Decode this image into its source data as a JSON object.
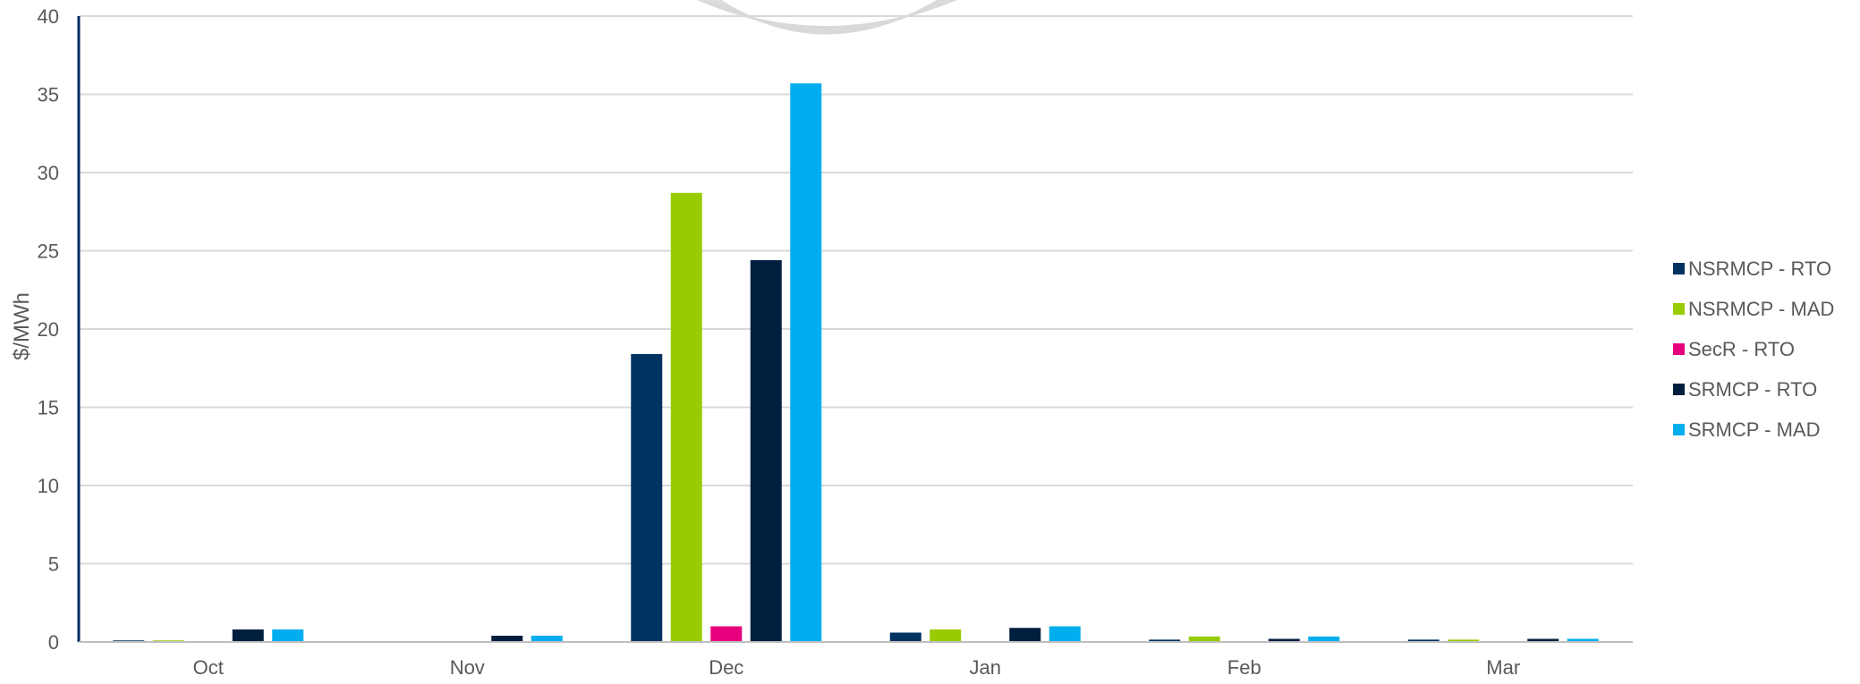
{
  "chart_data": {
    "type": "bar",
    "title": "",
    "xlabel": "",
    "ylabel": "$/MWh",
    "ylim": [
      0,
      40
    ],
    "yticks": [
      0,
      5,
      10,
      15,
      20,
      25,
      30,
      35,
      40
    ],
    "grid": true,
    "legend_position": "right",
    "categories": [
      "Oct",
      "Nov",
      "Dec",
      "Jan",
      "Feb",
      "Mar"
    ],
    "series": [
      {
        "name": "NSRMCP - RTO",
        "color": "#003262",
        "values": [
          0.1,
          0.0,
          18.4,
          0.6,
          0.15,
          0.15
        ]
      },
      {
        "name": "NSRMCP - MAD",
        "color": "#99cc00",
        "values": [
          0.1,
          0.0,
          28.7,
          0.8,
          0.35,
          0.15
        ]
      },
      {
        "name": "SecR - RTO",
        "color": "#e6007e",
        "values": [
          0.0,
          0.0,
          1.0,
          0.0,
          0.0,
          0.0
        ]
      },
      {
        "name": "SRMCP - RTO",
        "color": "#001f3f",
        "values": [
          0.8,
          0.4,
          24.4,
          0.9,
          0.2,
          0.2
        ]
      },
      {
        "name": "SRMCP - MAD",
        "color": "#00aeef",
        "values": [
          0.8,
          0.4,
          35.7,
          1.0,
          0.35,
          0.2
        ]
      }
    ]
  }
}
